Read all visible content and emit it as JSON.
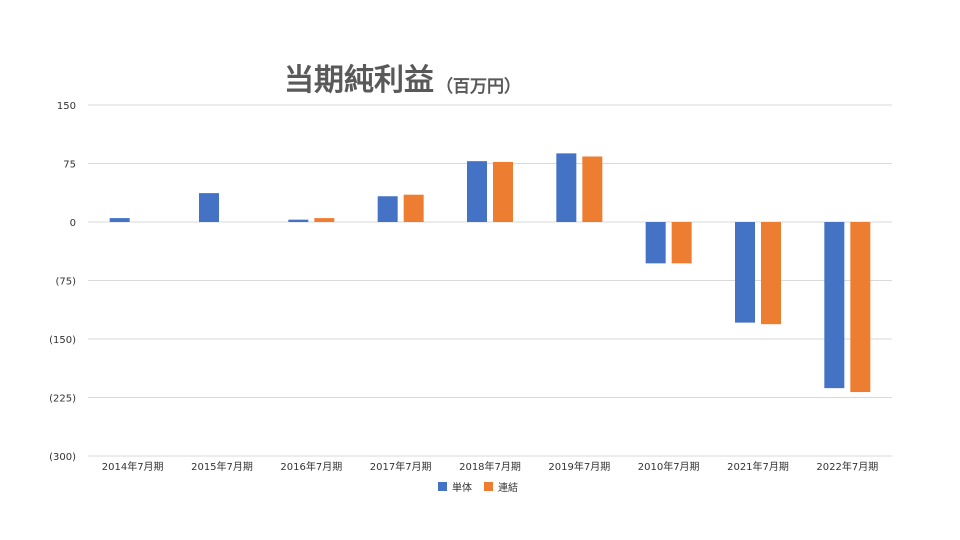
{
  "chart_data": {
    "type": "bar",
    "title": "当期純利益",
    "subtitle": "（百万円）",
    "categories": [
      "2014年7月期",
      "2015年7月期",
      "2016年7月期",
      "2017年7月期",
      "2018年7月期",
      "2019年7月期",
      "2010年7月期",
      "2021年7月期",
      "2022年7月期"
    ],
    "series": [
      {
        "name": "単体",
        "color": "#4472C4",
        "values": [
          5,
          37,
          3,
          33,
          78,
          88,
          -53,
          -129,
          -213
        ]
      },
      {
        "name": "連結",
        "color": "#ED7D31",
        "values": [
          null,
          null,
          5,
          35,
          77,
          84,
          -53,
          -131,
          -218
        ]
      }
    ],
    "ylim": [
      -300,
      150
    ],
    "yticks": [
      150,
      75,
      0,
      -75,
      -150,
      -225,
      -300
    ],
    "ytick_labels": [
      "150",
      "75",
      "0",
      "(75)",
      "(150)",
      "(225)",
      "(300)"
    ],
    "grid": true,
    "legend_position": "bottom"
  }
}
